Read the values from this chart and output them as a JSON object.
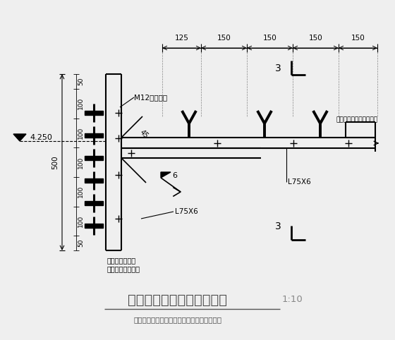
{
  "bg_color": "#efefef",
  "line_color": "#000000",
  "title": "梁顶加固角钢端头锚固构件",
  "title_scale": "1:10",
  "subtitle": "板底负弯矩加固角钢，两端锚固于柱或者梁侧",
  "label_4250": "4.250",
  "label_M12": "M12化学锚栓",
  "label_500": "500",
  "label_L75X6_left": "L75X6",
  "label_L75X6_right": "L75X6",
  "label_6": "6",
  "label_45": "45",
  "label_3_top": "3",
  "label_3_bot": "3",
  "label_jjbj_top": "紧贴板底表面和梁侧表面",
  "label_jjzj_bot1": "紧靠框架柱表面",
  "label_jjzj_bot2": "或者紧贴梁侧表面",
  "dim_top": [
    "125",
    "150",
    "150",
    "150",
    "150"
  ],
  "dim_left": [
    "50",
    "100",
    "100",
    "100",
    "100",
    "100",
    "50"
  ],
  "figsize": [
    5.6,
    4.82
  ],
  "dpi": 100
}
